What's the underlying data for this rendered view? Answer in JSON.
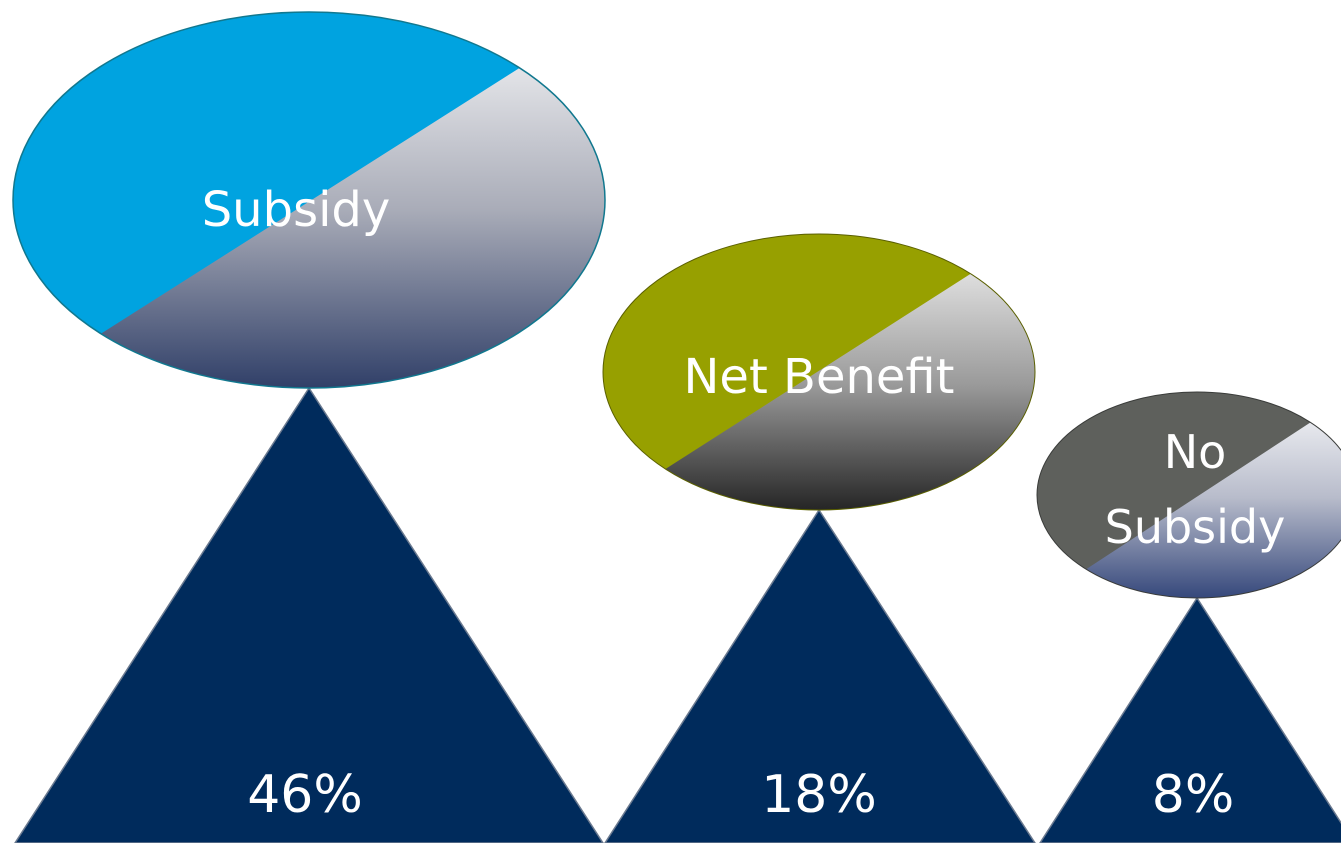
{
  "colors": {
    "triangle": "#002b5c",
    "subsidy": "#00a3e0",
    "net_benefit": "#97a000",
    "no_subsidy": "#5e605c",
    "text": "#ffffff"
  },
  "items": [
    {
      "label_lines": [
        "Subsidy"
      ],
      "percent": "46%",
      "value": 46
    },
    {
      "label_lines": [
        "Net Benefit"
      ],
      "percent": "18%",
      "value": 18
    },
    {
      "label_lines": [
        "No",
        "Subsidy"
      ],
      "percent": "8%",
      "value": 8
    }
  ]
}
